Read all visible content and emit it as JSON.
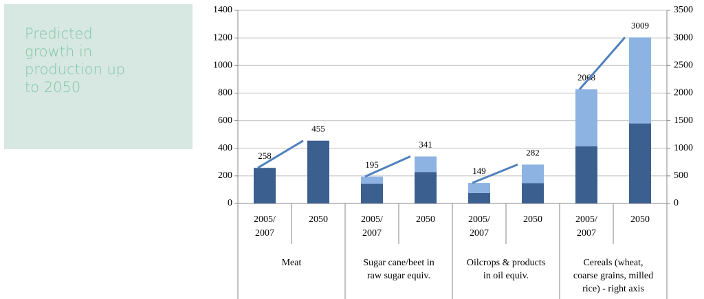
{
  "title": "Predicted growth in production up to 2050",
  "chart_data": {
    "type": "bar",
    "stacked": true,
    "grid": true,
    "groups": [
      {
        "label": "Meat",
        "categories": [
          "2005/\n2007",
          "2050"
        ]
      },
      {
        "label": "Sugar cane/beet in\nraw sugar equiv.",
        "categories": [
          "2005/\n2007",
          "2050"
        ]
      },
      {
        "label": "Oilcrops & products\nin oil equiv.",
        "categories": [
          "2005/\n2007",
          "2050"
        ]
      },
      {
        "label": "Cereals (wheat,\ncoarse grains, milled\nrice) - right axis",
        "categories": [
          "2005/\n2007",
          "2050"
        ]
      }
    ],
    "series": [
      {
        "color": "#3b5f8e",
        "values": [
          258,
          455,
          143,
          228,
          75,
          148,
          null,
          null
        ]
      },
      {
        "color": "#8db3e2",
        "values": [
          null,
          null,
          52,
          113,
          74,
          134,
          null,
          null
        ]
      },
      {
        "color": "#3b5f8e",
        "axis": "y2",
        "values": [
          null,
          null,
          null,
          null,
          null,
          null,
          1037,
          1450
        ]
      },
      {
        "color": "#8db3e2",
        "axis": "y2",
        "values": [
          null,
          null,
          null,
          null,
          null,
          null,
          1031,
          1559
        ]
      },
      {
        "type": "line",
        "color": "#4f81bd",
        "values": [
          258,
          455,
          195,
          341,
          149,
          282,
          null,
          null
        ]
      },
      {
        "type": "line",
        "color": "#4f81bd",
        "axis": "y2",
        "values": [
          null,
          null,
          null,
          null,
          null,
          null,
          2068,
          3009
        ]
      }
    ],
    "ylim": [
      0,
      1400
    ],
    "yticks": [
      0,
      200,
      400,
      600,
      800,
      1000,
      1200,
      1400
    ],
    "y2lim": [
      0,
      3500
    ],
    "y2ticks": [
      0,
      500,
      1000,
      1500,
      2000,
      2500,
      3000,
      3500
    ]
  }
}
